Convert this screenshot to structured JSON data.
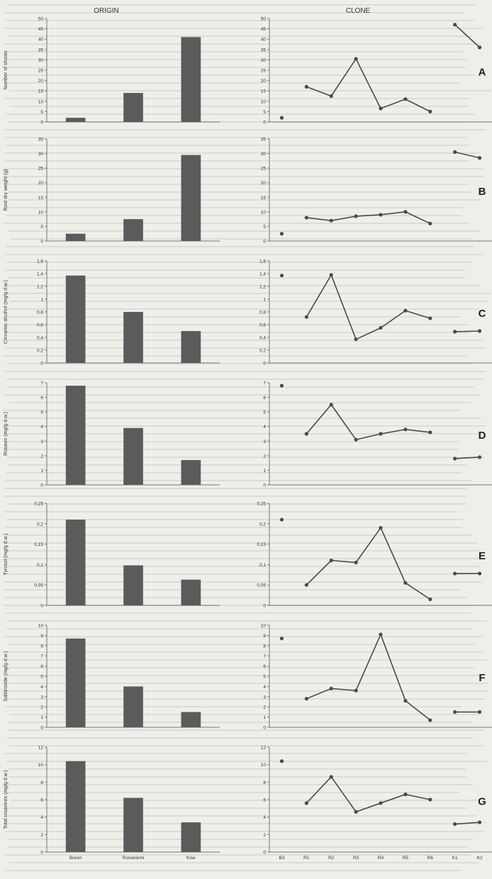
{
  "headers": {
    "origin": "ORIGIN",
    "clone": "CLONE"
  },
  "colors": {
    "bar": "#5b5b5b",
    "line": "#4a4a4a",
    "marker": "#4a4a4a",
    "axis": "#777777",
    "text": "#333333"
  },
  "chart_data": [
    {
      "type": "bar",
      "panel": "origin",
      "ylabel": "Number of shoots",
      "ylim": [
        0,
        50
      ],
      "yticks": [
        0,
        5,
        10,
        15,
        20,
        25,
        30,
        35,
        40,
        45,
        50
      ],
      "categories": [
        "Buren",
        "Rovaniemi",
        "Kise"
      ],
      "values": [
        2,
        14,
        41
      ],
      "show_xlabels": false
    },
    {
      "type": "line",
      "panel": "clone",
      "letter": "A",
      "ylim": [
        0,
        50
      ],
      "yticks": [
        0,
        5,
        10,
        15,
        20,
        25,
        30,
        35,
        40,
        45,
        50
      ],
      "categories": [
        "B3",
        "R1",
        "R2",
        "R3",
        "R4",
        "R5",
        "R6",
        "K1",
        "K2"
      ],
      "values": [
        2,
        17,
        12.5,
        30.5,
        6.5,
        11,
        5,
        47,
        36
      ],
      "segments": [
        [
          1,
          6
        ],
        [
          7,
          8
        ]
      ],
      "isolated": [
        0
      ],
      "show_xlabels": false
    },
    {
      "type": "bar",
      "panel": "origin",
      "ylabel": "Root dry weight (g)",
      "ylim": [
        0,
        35
      ],
      "yticks": [
        0,
        5,
        10,
        15,
        20,
        25,
        30,
        35
      ],
      "categories": [
        "Buren",
        "Rovaniemi",
        "Kise"
      ],
      "values": [
        2.5,
        7.5,
        29.5
      ],
      "show_xlabels": false
    },
    {
      "type": "line",
      "panel": "clone",
      "letter": "B",
      "ylim": [
        0,
        35
      ],
      "yticks": [
        0,
        5,
        10,
        15,
        20,
        25,
        30,
        35
      ],
      "categories": [
        "B3",
        "R1",
        "R2",
        "R3",
        "R4",
        "R5",
        "R6",
        "K1",
        "K2"
      ],
      "values": [
        2.5,
        8,
        7,
        8.5,
        9,
        10,
        6,
        30.5,
        28.5
      ],
      "segments": [
        [
          1,
          6
        ],
        [
          7,
          8
        ]
      ],
      "isolated": [
        0
      ],
      "show_xlabels": false
    },
    {
      "type": "bar",
      "panel": "origin",
      "ylabel": "Cinnamic alcohol (mg/g d.w.)",
      "ylim": [
        0,
        1.6
      ],
      "yticks": [
        0,
        0.2,
        0.4,
        0.6,
        0.8,
        1,
        1.2,
        1.4,
        1.6
      ],
      "yticklabels": [
        "0",
        "0,2",
        "0,4",
        "0,6",
        "0,8",
        "1",
        "1,2",
        "1,4",
        "1,6"
      ],
      "categories": [
        "Buren",
        "Rovaniemi",
        "Kise"
      ],
      "values": [
        1.37,
        0.8,
        0.5
      ],
      "show_xlabels": false
    },
    {
      "type": "line",
      "panel": "clone",
      "letter": "C",
      "ylim": [
        0,
        1.6
      ],
      "yticks": [
        0,
        0.2,
        0.4,
        0.6,
        0.8,
        1,
        1.2,
        1.4,
        1.6
      ],
      "yticklabels": [
        "0",
        "0,2",
        "0,4",
        "0,6",
        "0,8",
        "1",
        "1,2",
        "1,4",
        "1,6"
      ],
      "categories": [
        "B3",
        "R1",
        "R2",
        "R3",
        "R4",
        "R5",
        "R6",
        "K1",
        "K2"
      ],
      "values": [
        1.37,
        0.72,
        1.38,
        0.37,
        0.55,
        0.82,
        0.7,
        0.49,
        0.5
      ],
      "segments": [
        [
          1,
          6
        ],
        [
          7,
          8
        ]
      ],
      "isolated": [
        0
      ],
      "show_xlabels": false
    },
    {
      "type": "bar",
      "panel": "origin",
      "ylabel": "Rosavin (mg/g d.w.)",
      "ylim": [
        0,
        7
      ],
      "yticks": [
        0,
        1,
        2,
        3,
        4,
        5,
        6,
        7
      ],
      "categories": [
        "Buren",
        "Rovaniemi",
        "Kise"
      ],
      "values": [
        6.8,
        3.9,
        1.7
      ],
      "show_xlabels": false
    },
    {
      "type": "line",
      "panel": "clone",
      "letter": "D",
      "ylim": [
        0,
        7
      ],
      "yticks": [
        0,
        1,
        2,
        3,
        4,
        5,
        6,
        7
      ],
      "categories": [
        "B3",
        "R1",
        "R2",
        "R3",
        "R4",
        "R5",
        "R6",
        "K1",
        "K2"
      ],
      "values": [
        6.8,
        3.5,
        5.5,
        3.1,
        3.5,
        3.8,
        3.6,
        1.8,
        1.9
      ],
      "segments": [
        [
          1,
          6
        ],
        [
          7,
          8
        ]
      ],
      "isolated": [
        0
      ],
      "show_xlabels": false
    },
    {
      "type": "bar",
      "panel": "origin",
      "ylabel": "Tyrosol (mg/g d.w.)",
      "ylim": [
        0,
        0.25
      ],
      "yticks": [
        0,
        0.05,
        0.1,
        0.15,
        0.2,
        0.25
      ],
      "yticklabels": [
        "0",
        "0,05",
        "0,1",
        "0,15",
        "0,2",
        "0,25"
      ],
      "categories": [
        "Buren",
        "Rovaniemi",
        "Kise"
      ],
      "values": [
        0.21,
        0.098,
        0.063
      ],
      "show_xlabels": false
    },
    {
      "type": "line",
      "panel": "clone",
      "letter": "E",
      "ylim": [
        0,
        0.25
      ],
      "yticks": [
        0,
        0.05,
        0.1,
        0.15,
        0.2,
        0.25
      ],
      "yticklabels": [
        "0",
        "0,05",
        "0,1",
        "0,15",
        "0,2",
        "0,25"
      ],
      "categories": [
        "B3",
        "R1",
        "R2",
        "R3",
        "R4",
        "R5",
        "R6",
        "K1",
        "K2"
      ],
      "values": [
        0.21,
        0.05,
        0.11,
        0.105,
        0.19,
        0.055,
        0.015,
        0.078,
        0.078
      ],
      "segments": [
        [
          1,
          6
        ],
        [
          7,
          8
        ]
      ],
      "isolated": [
        0
      ],
      "show_xlabels": false
    },
    {
      "type": "bar",
      "panel": "origin",
      "ylabel": "Salidroside (mg/g d.w.)",
      "ylim": [
        0,
        10
      ],
      "yticks": [
        0,
        1,
        2,
        3,
        4,
        5,
        6,
        7,
        8,
        9,
        10
      ],
      "categories": [
        "Buren",
        "Rovaniemi",
        "Kise"
      ],
      "values": [
        8.7,
        4,
        1.5
      ],
      "show_xlabels": false
    },
    {
      "type": "line",
      "panel": "clone",
      "letter": "F",
      "ylim": [
        0,
        10
      ],
      "yticks": [
        0,
        1,
        2,
        3,
        4,
        5,
        6,
        7,
        8,
        9,
        10
      ],
      "categories": [
        "B3",
        "R1",
        "R2",
        "R3",
        "R4",
        "R5",
        "R6",
        "K1",
        "K2"
      ],
      "values": [
        8.7,
        2.8,
        3.8,
        3.6,
        9.1,
        2.6,
        0.7,
        1.5,
        1.5
      ],
      "segments": [
        [
          1,
          6
        ],
        [
          7,
          8
        ]
      ],
      "isolated": [
        0
      ],
      "show_xlabels": false
    },
    {
      "type": "bar",
      "panel": "origin",
      "ylabel": "Total rosavines (mg/g d.w.)",
      "ylim": [
        0,
        12
      ],
      "yticks": [
        0,
        2,
        4,
        6,
        8,
        10,
        12
      ],
      "categories": [
        "Buren",
        "Rovaniemi",
        "Kise"
      ],
      "values": [
        10.4,
        6.2,
        3.4
      ],
      "show_xlabels": true
    },
    {
      "type": "line",
      "panel": "clone",
      "letter": "G",
      "ylim": [
        0,
        12
      ],
      "yticks": [
        0,
        2,
        4,
        6,
        8,
        10,
        12
      ],
      "categories": [
        "B3",
        "R1",
        "R2",
        "R3",
        "R4",
        "R5",
        "R6",
        "K1",
        "K2"
      ],
      "values": [
        10.4,
        5.6,
        8.6,
        4.6,
        5.6,
        6.6,
        6,
        3.2,
        3.4
      ],
      "segments": [
        [
          1,
          6
        ],
        [
          7,
          8
        ]
      ],
      "isolated": [
        0
      ],
      "show_xlabels": true
    }
  ]
}
